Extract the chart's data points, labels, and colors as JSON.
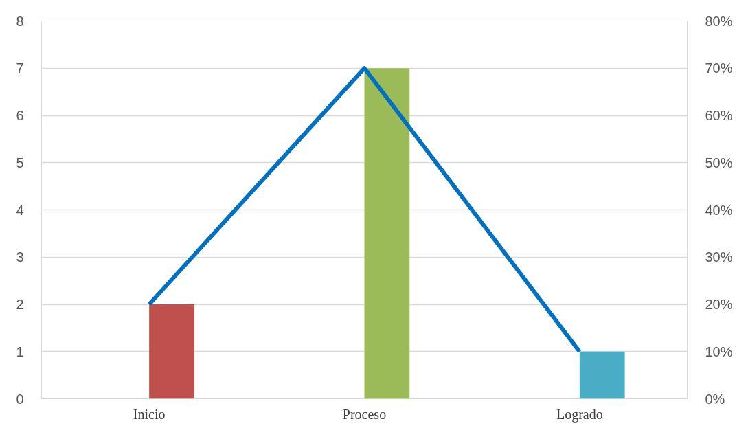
{
  "chart_data": {
    "type": "bar",
    "categories": [
      "Inicio",
      "Proceso",
      "Logrado"
    ],
    "series": [
      {
        "colors": [
          "#c0504d",
          "#9bbb59",
          "#4bacc6"
        ],
        "values": [
          2,
          7,
          1
        ]
      },
      {
        "type": "line",
        "axis": "y2",
        "color": "#0070c0",
        "values": [
          20,
          70,
          10
        ]
      }
    ],
    "ylim": [
      0,
      8
    ],
    "yticks": [
      0,
      1,
      2,
      3,
      4,
      5,
      6,
      7,
      8
    ],
    "y2lim": [
      0,
      80
    ],
    "y2ticks": [
      {
        "value": 0,
        "label": "0%"
      },
      {
        "value": 10,
        "label": "10%"
      },
      {
        "value": 20,
        "label": "20%"
      },
      {
        "value": 30,
        "label": "30%"
      },
      {
        "value": 40,
        "label": "40%"
      },
      {
        "value": 50,
        "label": "50%"
      },
      {
        "value": 60,
        "label": "60%"
      },
      {
        "value": 70,
        "label": "70%"
      },
      {
        "value": 80,
        "label": "80%"
      }
    ],
    "grid": "y"
  }
}
